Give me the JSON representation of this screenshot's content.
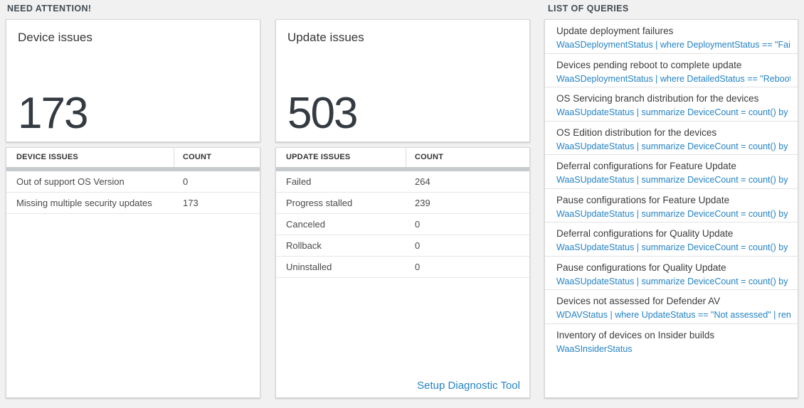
{
  "headings": {
    "need_attention": "NEED ATTENTION!",
    "list_of_queries": "LIST OF QUERIES"
  },
  "device_card": {
    "title": "Device issues",
    "count": "173"
  },
  "device_table": {
    "headers": [
      "DEVICE ISSUES",
      "COUNT"
    ],
    "rows": [
      {
        "label": "Out of support OS Version",
        "count": "0"
      },
      {
        "label": "Missing multiple security updates",
        "count": "173"
      }
    ]
  },
  "update_card": {
    "title": "Update issues",
    "count": "503"
  },
  "update_table": {
    "headers": [
      "UPDATE ISSUES",
      "COUNT"
    ],
    "rows": [
      {
        "label": "Failed",
        "count": "264"
      },
      {
        "label": "Progress stalled",
        "count": "239"
      },
      {
        "label": "Canceled",
        "count": "0"
      },
      {
        "label": "Rollback",
        "count": "0"
      },
      {
        "label": "Uninstalled",
        "count": "0"
      }
    ],
    "footer_link": "Setup Diagnostic Tool"
  },
  "queries": {
    "items": [
      {
        "title": "Update deployment failures",
        "query": "WaaSDeploymentStatus | where DeploymentStatus == \"Failed\" |..."
      },
      {
        "title": "Devices pending reboot to complete update",
        "query": "WaaSDeploymentStatus | where DetailedStatus == \"Reboot pend..."
      },
      {
        "title": "OS Servicing branch distribution for the devices",
        "query": "WaaSUpdateStatus | summarize DeviceCount = count() by OSSer..."
      },
      {
        "title": "OS Edition distribution for the devices",
        "query": "WaaSUpdateStatus | summarize DeviceCount = count() by OSEdit..."
      },
      {
        "title": "Deferral configurations for Feature Update",
        "query": "WaaSUpdateStatus | summarize DeviceCount = count() by Featur..."
      },
      {
        "title": "Pause configurations for Feature Update",
        "query": "WaaSUpdateStatus | summarize DeviceCount = count() by Featur..."
      },
      {
        "title": "Deferral configurations for Quality Update",
        "query": "WaaSUpdateStatus | summarize DeviceCount = count() by Qualit..."
      },
      {
        "title": "Pause configurations for Quality Update",
        "query": "WaaSUpdateStatus | summarize DeviceCount = count() by Qualit..."
      },
      {
        "title": "Devices not assessed for Defender AV",
        "query": "WDAVStatus | where UpdateStatus == \"Not assessed\" | render ta..."
      },
      {
        "title": "Inventory of devices on Insider builds",
        "query": "WaaSInsiderStatus"
      }
    ]
  },
  "colors": {
    "background": "#f1f1f1",
    "accent_blue": "#2583c5",
    "big_number": "#333a41",
    "header_bar": "#c5cacd"
  }
}
